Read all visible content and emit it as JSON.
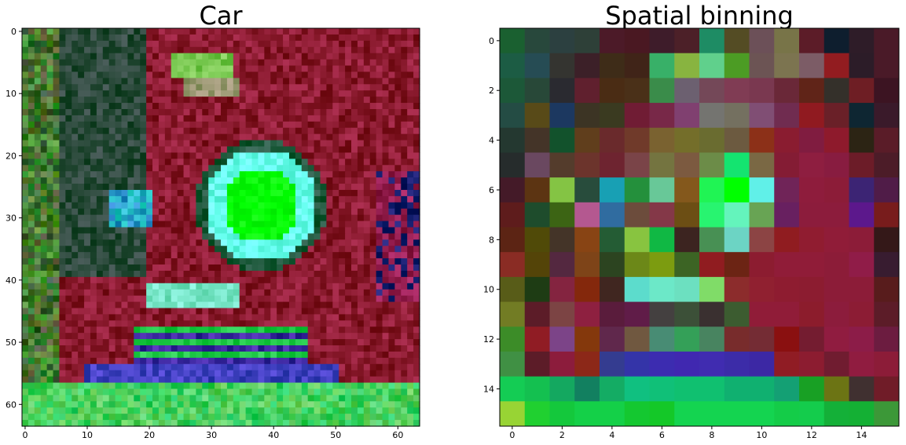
{
  "chart_data": [
    {
      "type": "heatmap",
      "title": "Car",
      "width": 64,
      "height": 64,
      "xlim": [
        0,
        63
      ],
      "ylim": [
        63,
        0
      ],
      "xticks": [
        0,
        10,
        20,
        30,
        40,
        50,
        60
      ],
      "yticks": [
        0,
        10,
        20,
        30,
        40,
        50,
        60
      ],
      "grid": false,
      "features": {
        "base_color": "#8a1a2e",
        "top_left_color": "#2a4a3a",
        "bottom_band_color": "#20d050",
        "wheel_color": "#00ff00",
        "wheel_rim_color": "#66ffee",
        "bottom_blue_color": "#4040c0"
      }
    },
    {
      "type": "heatmap",
      "title": "Spatial binning",
      "width": 16,
      "height": 16,
      "xlim": [
        0,
        15
      ],
      "ylim": [
        15,
        0
      ],
      "xticks": [
        0,
        2,
        4,
        6,
        8,
        10,
        12,
        14
      ],
      "yticks": [
        0,
        2,
        4,
        6,
        8,
        10,
        12,
        14
      ],
      "grid": false,
      "pixels": [
        [
          "#1a6030",
          "#28483c",
          "#2c4040",
          "#2e4038",
          "#4c1a28",
          "#4a1822",
          "#3e1c2a",
          "#4c2028",
          "#1e8c64",
          "#544c24",
          "#6c5058",
          "#787448",
          "#5c1c28",
          "#0e1e2e",
          "#2e1c28",
          "#4a1a28"
        ],
        [
          "#1c5c44",
          "#264c54",
          "#343430",
          "#3c2028",
          "#3e2c18",
          "#402418",
          "#38b068",
          "#88b440",
          "#60d08c",
          "#4c9c24",
          "#6c5454",
          "#7c7450",
          "#7c5c66",
          "#921c20",
          "#2c1c28",
          "#4a1a28"
        ],
        [
          "#1c5838",
          "#284838",
          "#2a2a30",
          "#60202e",
          "#4a2c14",
          "#4a3018",
          "#3a8c4a",
          "#6c6070",
          "#744858",
          "#803c54",
          "#7a3850",
          "#6a2838",
          "#602418",
          "#34302a",
          "#6e1e24",
          "#3c1422"
        ],
        [
          "#244c44",
          "#584a18",
          "#1c3860",
          "#3c3424",
          "#3a3a20",
          "#701c34",
          "#782848",
          "#804070",
          "#747470",
          "#747060",
          "#804e74",
          "#702c50",
          "#901a20",
          "#6a2028",
          "#0e2632",
          "#3a1a2a"
        ],
        [
          "#243830",
          "#443428",
          "#12522c",
          "#603e1c",
          "#6a2a2c",
          "#703a2a",
          "#7a6230",
          "#746e2a",
          "#6a6c30",
          "#6c5a40",
          "#8c3018",
          "#8a1c30",
          "#801c40",
          "#8e1a2c",
          "#2c2414",
          "#5a1c28"
        ],
        [
          "#262c2c",
          "#6a4860",
          "#543c2c",
          "#6c342c",
          "#6e2430",
          "#7a4448",
          "#747440",
          "#7c5a40",
          "#6c8c48",
          "#14e470",
          "#7a6844",
          "#841c34",
          "#8e1e40",
          "#881c40",
          "#6c1c28",
          "#4c1c28"
        ],
        [
          "#441a28",
          "#5c3412",
          "#84c444",
          "#284c3c",
          "#18a0b4",
          "#24903c",
          "#68c898",
          "#84581c",
          "#20f454",
          "#00ff00",
          "#60f0e8",
          "#702458",
          "#8e1c3c",
          "#8c1c38",
          "#3c2474",
          "#501c48"
        ],
        [
          "#5e1c1c",
          "#1e4c2c",
          "#3c6414",
          "#b45890",
          "#306ca0",
          "#6c4c3c",
          "#843848",
          "#6c4e14",
          "#28f470",
          "#64f4bc",
          "#68a454",
          "#682060",
          "#8c1c3c",
          "#8c1c3c",
          "#5c188c",
          "#781c1c"
        ],
        [
          "#5c2414",
          "#504a08",
          "#443428",
          "#884414",
          "#245c34",
          "#88c440",
          "#10b844",
          "#3c2420",
          "#489054",
          "#6cd4c4",
          "#8c4444",
          "#901c20",
          "#901c30",
          "#901c38",
          "#8c1c38",
          "#341818"
        ],
        [
          "#8a2c24",
          "#544408",
          "#542840",
          "#7e4418",
          "#2c4420",
          "#6c8818",
          "#7c9c10",
          "#3c6424",
          "#901c20",
          "#6c2414",
          "#8c1c30",
          "#901c38",
          "#901c38",
          "#8c1c38",
          "#901c48",
          "#381c30"
        ],
        [
          "#585c18",
          "#1e3c14",
          "#842440",
          "#84280c",
          "#402620",
          "#5cdccc",
          "#6ce8c8",
          "#6ce0c0",
          "#80dc68",
          "#8c2c2c",
          "#902030",
          "#8e1c30",
          "#8c1c30",
          "#8c1c38",
          "#8c1c38",
          "#581c1c"
        ],
        [
          "#727c24",
          "#5c1c28",
          "#7c4444",
          "#8e2040",
          "#5a1c3c",
          "#601c48",
          "#444040",
          "#3c5038",
          "#3a3030",
          "#3c5c30",
          "#901c38",
          "#901c38",
          "#8c1c2c",
          "#8c1c3c",
          "#8c1c34",
          "#5c1c28"
        ],
        [
          "#3c8c28",
          "#901c24",
          "#7c4488",
          "#84380c",
          "#60284c",
          "#705840",
          "#488c74",
          "#34a058",
          "#488460",
          "#782c2c",
          "#742c34",
          "#8a1010",
          "#741c30",
          "#901c40",
          "#8c1c48",
          "#6c1c40"
        ],
        [
          "#409044",
          "#5c1c28",
          "#8c1c3c",
          "#8c2818",
          "#343c90",
          "#3434a8",
          "#3c2cb0",
          "#4028b0",
          "#402cb0",
          "#3c2ca8",
          "#3c28a4",
          "#901c24",
          "#8c1c30",
          "#701c30",
          "#901c40",
          "#8c1c38"
        ],
        [
          "#14cc54",
          "#14c050",
          "#14a860",
          "#128060",
          "#14ac64",
          "#10c080",
          "#10c078",
          "#10c070",
          "#10c070",
          "#10b070",
          "#10b070",
          "#14a074",
          "#18a024",
          "#6c7414",
          "#403030",
          "#701c28"
        ],
        [
          "#98d434",
          "#20d030",
          "#14c83c",
          "#14d048",
          "#14d048",
          "#14c830",
          "#14c828",
          "#14d450",
          "#14d450",
          "#14d450",
          "#14d450",
          "#14cc48",
          "#14cc4c",
          "#14b038",
          "#14b034",
          "#3c9838"
        ]
      ]
    }
  ]
}
